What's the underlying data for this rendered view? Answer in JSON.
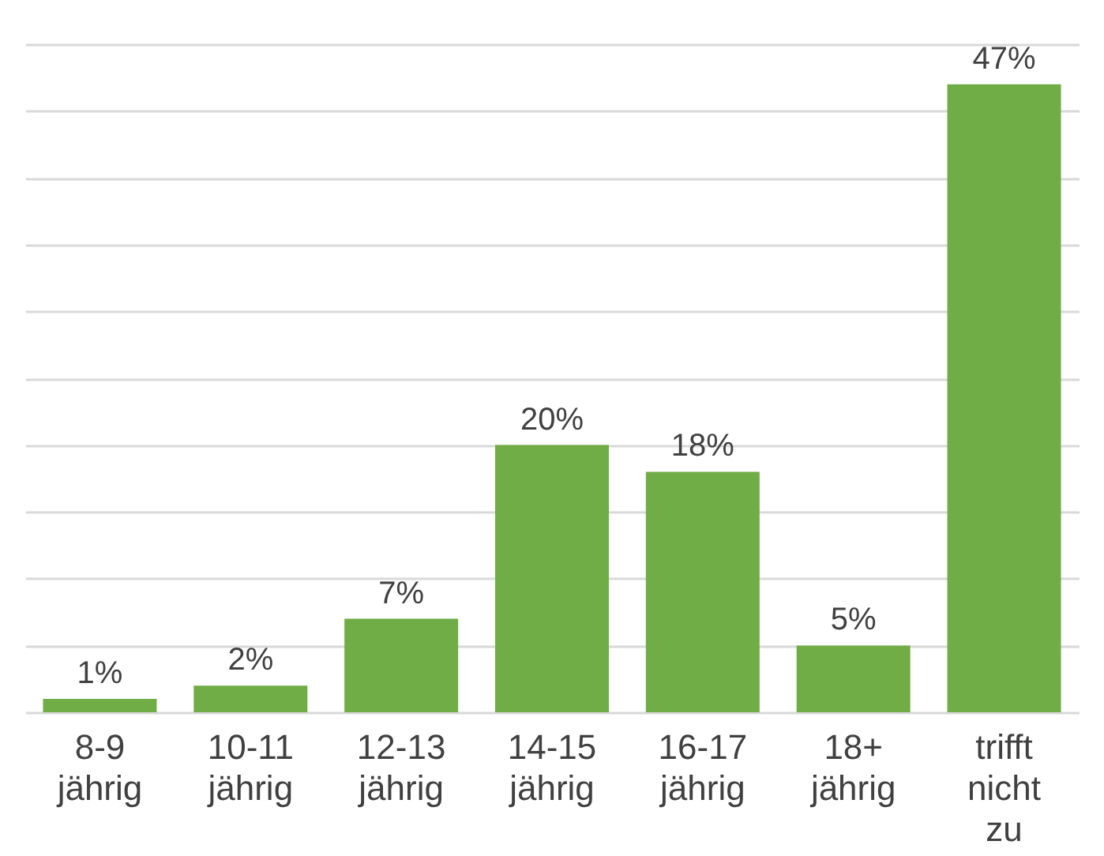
{
  "chart_data": {
    "type": "bar",
    "categories": [
      "8-9 jährig",
      "10-11 jährig",
      "12-13 jährig",
      "14-15 jährig",
      "16-17 jährig",
      "18+ jährig",
      "trifft nicht zu"
    ],
    "values": [
      1,
      2,
      7,
      20,
      18,
      5,
      47
    ],
    "value_labels": [
      "1%",
      "2%",
      "7%",
      "20%",
      "18%",
      "5%",
      "47%"
    ],
    "color": "#70ad47",
    "ylim": [
      0,
      50
    ],
    "yticks": [
      {
        "value": 0,
        "label": null
      },
      {
        "value": 5,
        "label": null
      },
      {
        "value": 10,
        "label": null
      },
      {
        "value": 15,
        "label": null
      },
      {
        "value": 20,
        "label": null
      },
      {
        "value": 25,
        "label": null
      },
      {
        "value": 30,
        "label": null
      },
      {
        "value": 35,
        "label": null
      },
      {
        "value": 40,
        "label": null
      },
      {
        "value": 45,
        "label": null
      },
      {
        "value": 50,
        "label": null
      }
    ],
    "grid": "y",
    "tick_labels": "x"
  }
}
